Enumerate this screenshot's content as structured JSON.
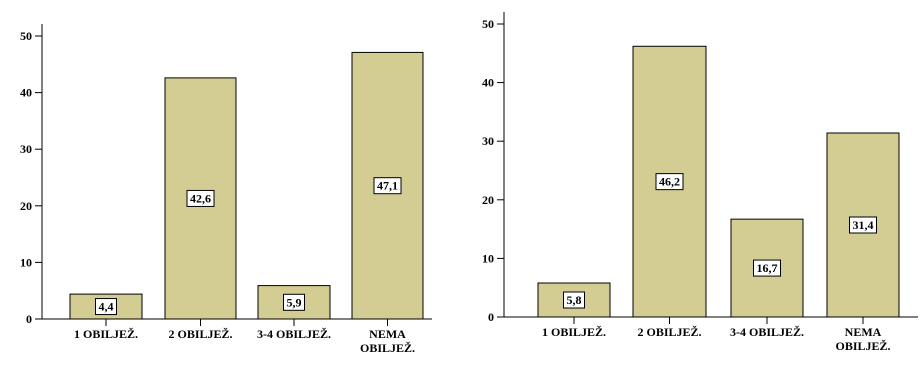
{
  "colors": {
    "bar_fill": "#d3cc93",
    "bar_stroke": "#000000",
    "axis": "#000000",
    "label_box_fill": "#ffffff"
  },
  "chart_data": [
    {
      "type": "bar",
      "categories": [
        [
          "1 OBILJEŽ."
        ],
        [
          "2 OBILJEŽ."
        ],
        [
          "3-4 OBILJEŽ."
        ],
        [
          "NEMA",
          "OBILJEŽ."
        ]
      ],
      "values": [
        4.4,
        42.6,
        5.9,
        47.1
      ],
      "data_labels": [
        "4,4",
        "42,6",
        "5,9",
        "47,1"
      ],
      "yticks": [
        "0",
        "10",
        "20",
        "30",
        "40",
        "50"
      ],
      "ylim": [
        0,
        50
      ],
      "title": "",
      "xlabel": "",
      "ylabel": "",
      "grid": false,
      "legend": "none"
    },
    {
      "type": "bar",
      "categories": [
        [
          "1 OBILJEŽ."
        ],
        [
          "2 OBILJEŽ."
        ],
        [
          "3-4 OBILJEŽ."
        ],
        [
          "NEMA",
          "OBILJEŽ."
        ]
      ],
      "values": [
        5.8,
        46.2,
        16.7,
        31.4
      ],
      "data_labels": [
        "5,8",
        "46,2",
        "16,7",
        "31,4"
      ],
      "yticks": [
        "0",
        "10",
        "20",
        "30",
        "40",
        "50"
      ],
      "ylim": [
        0,
        50
      ],
      "title": "",
      "xlabel": "",
      "ylabel": "",
      "grid": false,
      "legend": "none"
    }
  ]
}
